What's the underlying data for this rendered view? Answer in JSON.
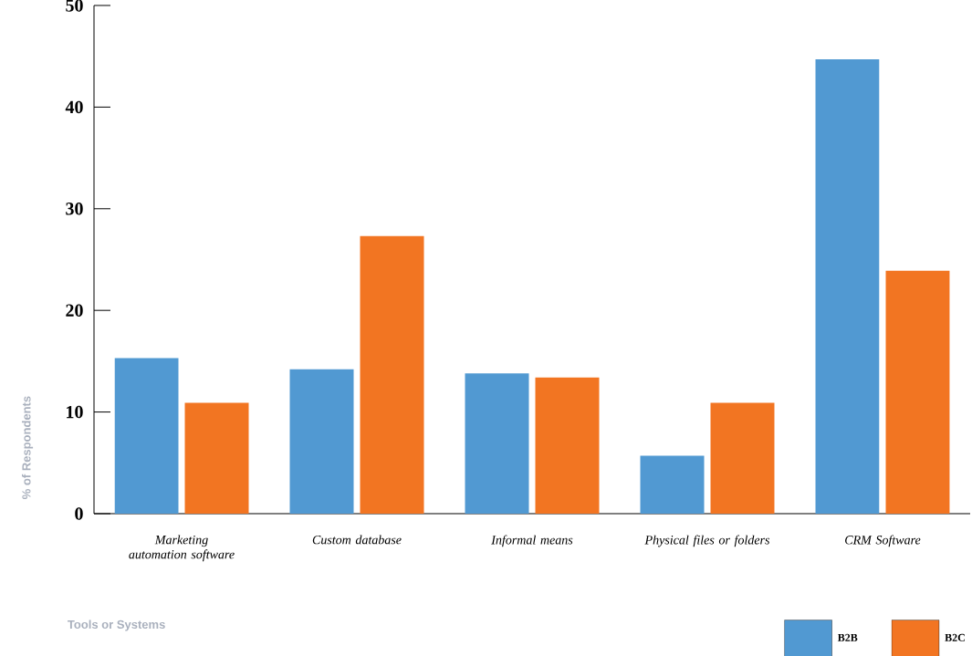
{
  "chart_data": {
    "type": "bar",
    "xlabel": "Tools or Systems",
    "ylabel": "% of Respondents",
    "categories": [
      "Marketing automation software",
      "Custom database",
      "Informal means",
      "Physical files or folders",
      "CRM Software"
    ],
    "series": [
      {
        "name": "B2B",
        "color": "#5199d2",
        "values": [
          15.3,
          14.2,
          13.8,
          5.7,
          44.7
        ]
      },
      {
        "name": "B2C",
        "color": "#f27522",
        "values": [
          10.9,
          27.3,
          13.4,
          10.9,
          23.9
        ]
      }
    ],
    "ylim": [
      0,
      50
    ],
    "yticks": [
      0,
      10,
      20,
      30,
      40,
      50
    ],
    "legend": "bottom right"
  }
}
